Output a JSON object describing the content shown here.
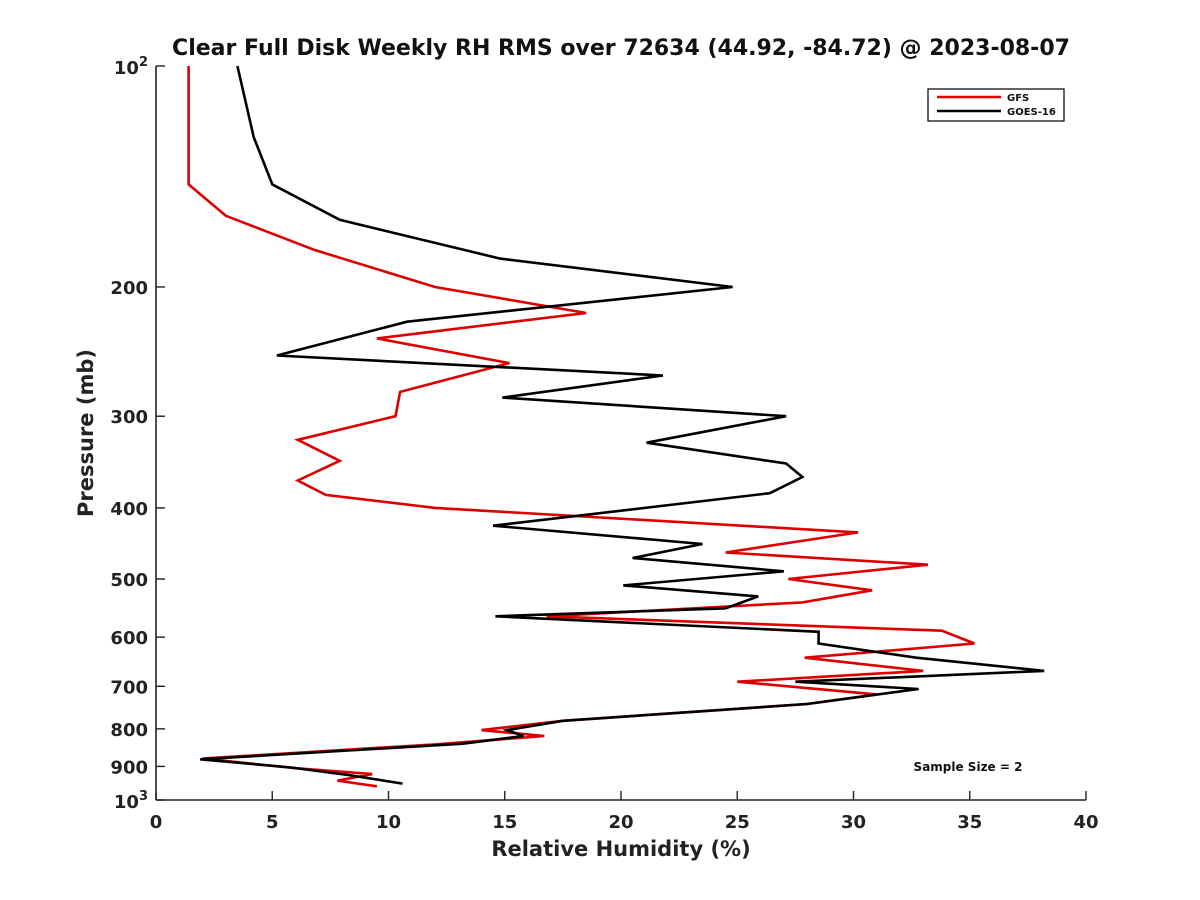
{
  "chart_data": {
    "type": "line",
    "title": "Clear Full Disk Weekly RH RMS over 72634 (44.92, -84.72) @ 2023-08-07",
    "xlabel": "Relative Humidity (%)",
    "ylabel": "Pressure (mb)",
    "xlim": [
      0,
      40
    ],
    "ylim": [
      100,
      1000
    ],
    "y_scale": "log",
    "y_reversed": true,
    "grid": false,
    "legend_position": "top-right",
    "x_ticks": [
      0,
      5,
      10,
      15,
      20,
      25,
      30,
      35,
      40
    ],
    "x_tick_labels": [
      "0",
      "5",
      "10",
      "15",
      "20",
      "25",
      "30",
      "35",
      "40"
    ],
    "y_ticks": [
      200,
      300,
      400,
      500,
      600,
      700,
      800,
      900
    ],
    "y_tick_labels": [
      "200",
      "300",
      "400",
      "500",
      "600",
      "700",
      "800",
      "900"
    ],
    "y_decade_labels": [
      {
        "value": 100,
        "base": "10",
        "exp": "2"
      },
      {
        "value": 1000,
        "base": "10",
        "exp": "3"
      }
    ],
    "annotation": "Sample Size = 2",
    "series": [
      {
        "name": "GFS",
        "color": "#dd0000",
        "points": [
          [
            1.4,
            100
          ],
          [
            1.4,
            125
          ],
          [
            1.4,
            145
          ],
          [
            3.0,
            160
          ],
          [
            6.8,
            178
          ],
          [
            12.0,
            200
          ],
          [
            18.5,
            217
          ],
          [
            9.5,
            235
          ],
          [
            15.2,
            254
          ],
          [
            10.5,
            278
          ],
          [
            10.3,
            300
          ],
          [
            6.1,
            323
          ],
          [
            7.9,
            345
          ],
          [
            6.1,
            367
          ],
          [
            7.3,
            384
          ],
          [
            12.0,
            400
          ],
          [
            30.2,
            432
          ],
          [
            24.5,
            460
          ],
          [
            33.2,
            478
          ],
          [
            27.2,
            500
          ],
          [
            30.8,
            518
          ],
          [
            27.8,
            538
          ],
          [
            16.8,
            562
          ],
          [
            33.8,
            588
          ],
          [
            35.2,
            612
          ],
          [
            27.9,
            640
          ],
          [
            33.0,
            667
          ],
          [
            25.0,
            690
          ],
          [
            31.0,
            718
          ],
          [
            28.0,
            740
          ],
          [
            17.5,
            780
          ],
          [
            14.0,
            803
          ],
          [
            16.7,
            818
          ],
          [
            12.0,
            840
          ],
          [
            2.0,
            878
          ],
          [
            6.0,
            905
          ],
          [
            9.3,
            922
          ],
          [
            7.8,
            941
          ],
          [
            9.5,
            958
          ]
        ]
      },
      {
        "name": "GOES-16",
        "color": "#000000",
        "points": [
          [
            3.5,
            100
          ],
          [
            4.2,
            125
          ],
          [
            5.0,
            145
          ],
          [
            7.9,
            162
          ],
          [
            14.8,
            183
          ],
          [
            24.8,
            200
          ],
          [
            10.8,
            223
          ],
          [
            5.2,
            248
          ],
          [
            21.8,
            264
          ],
          [
            14.9,
            283
          ],
          [
            27.1,
            300
          ],
          [
            21.1,
            326
          ],
          [
            27.1,
            348
          ],
          [
            27.8,
            363
          ],
          [
            26.4,
            382
          ],
          [
            14.5,
            423
          ],
          [
            23.5,
            448
          ],
          [
            20.5,
            468
          ],
          [
            27.0,
            488
          ],
          [
            20.1,
            510
          ],
          [
            25.9,
            528
          ],
          [
            24.5,
            548
          ],
          [
            14.6,
            562
          ],
          [
            28.5,
            590
          ],
          [
            28.5,
            612
          ],
          [
            32.7,
            640
          ],
          [
            38.2,
            667
          ],
          [
            27.5,
            690
          ],
          [
            32.8,
            706
          ],
          [
            28.0,
            740
          ],
          [
            17.5,
            780
          ],
          [
            15.1,
            803
          ],
          [
            15.8,
            818
          ],
          [
            13.2,
            838
          ],
          [
            1.9,
            880
          ],
          [
            5.8,
            903
          ],
          [
            8.3,
            925
          ],
          [
            10.6,
            950
          ]
        ]
      }
    ]
  }
}
